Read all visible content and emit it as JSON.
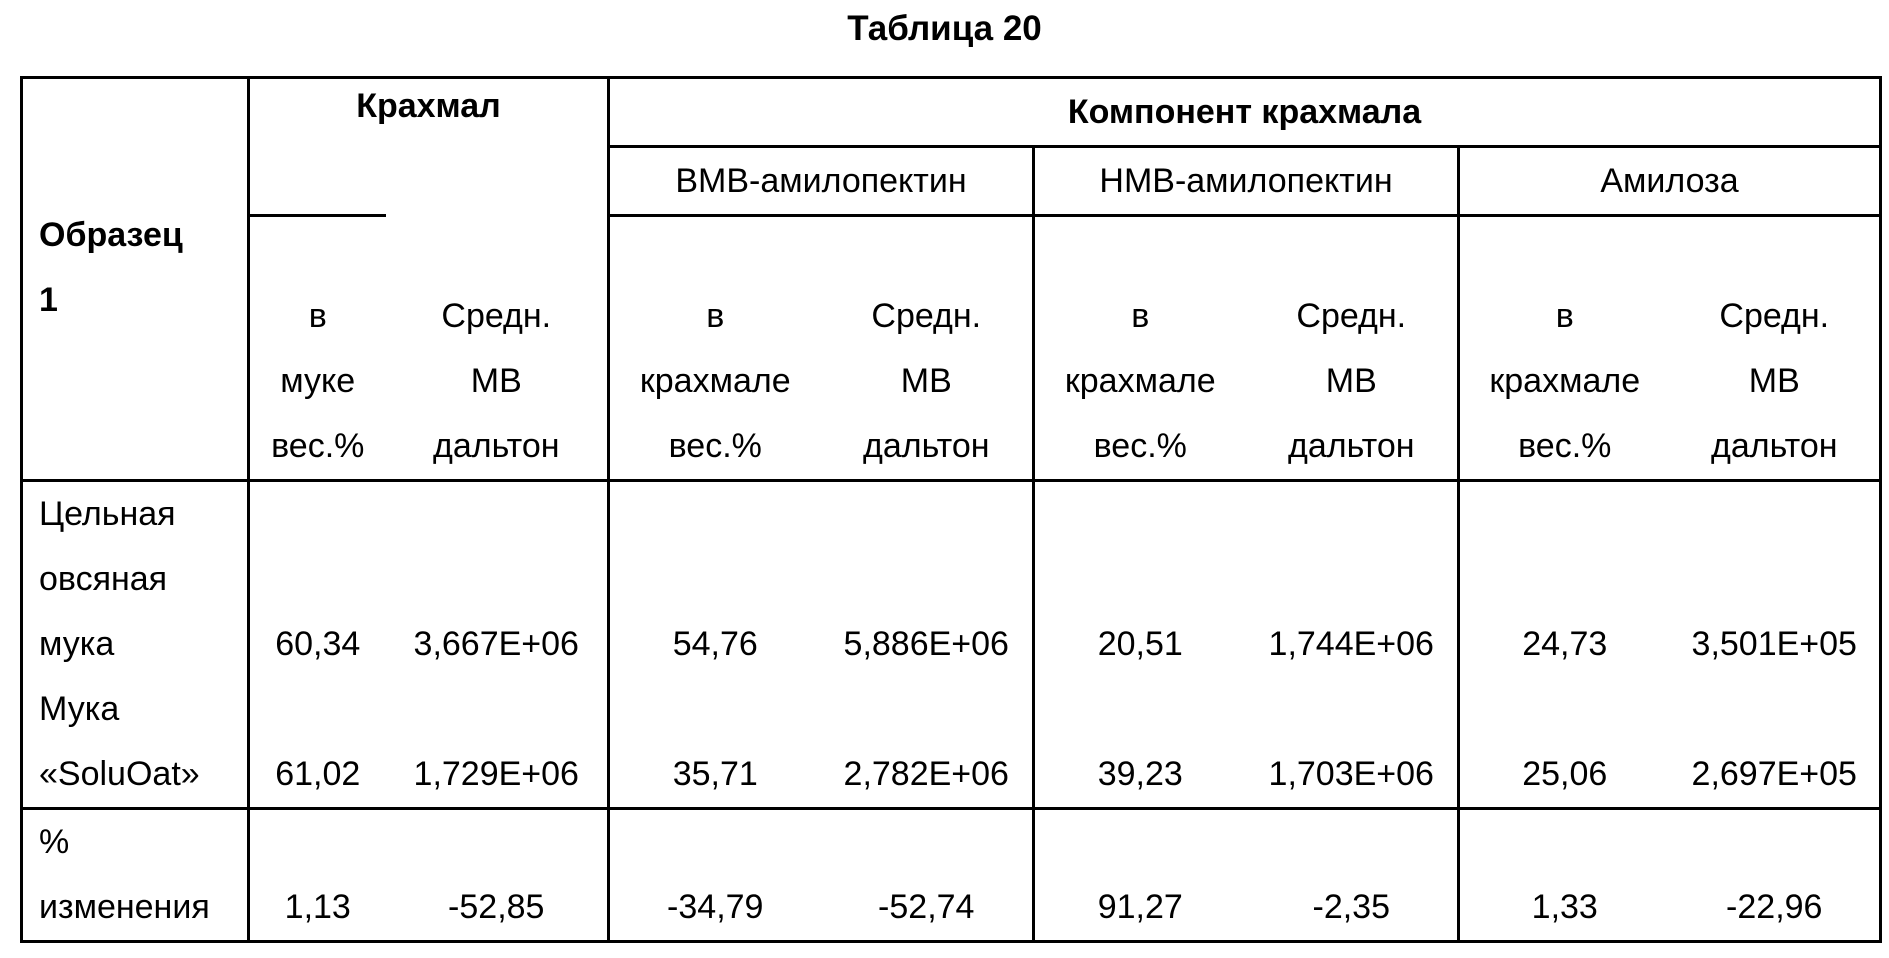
{
  "title": "Таблица 20",
  "table": {
    "header": {
      "sample": [
        "Образец",
        "1"
      ],
      "starch": "Крахмал",
      "component": "Компонент крахмала",
      "groups": [
        "ВМВ-амилопектин",
        "НМВ-амилопектин",
        "Амилоза"
      ],
      "columns": [
        [
          "в",
          "муке",
          "вес.%"
        ],
        [
          "Средн.",
          "МВ",
          "дальтон"
        ],
        [
          "в",
          "крахмале",
          "вес.%"
        ],
        [
          "Средн.",
          "МВ",
          "дальтон"
        ],
        [
          "в",
          "крахмале",
          "вес.%"
        ],
        [
          "Средн.",
          "МВ",
          "дальтон"
        ],
        [
          "в",
          "крахмале",
          "вес.%"
        ],
        [
          "Средн.",
          "МВ",
          "дальтон"
        ]
      ]
    },
    "rows": [
      {
        "name": [
          "Цельная",
          "овсяная",
          "мука"
        ],
        "values": [
          "60,34",
          "3,667E+06",
          "54,76",
          "5,886E+06",
          "20,51",
          "1,744E+06",
          "24,73",
          "3,501E+05"
        ]
      },
      {
        "name": [
          "Мука",
          "«SoluOat»"
        ],
        "values": [
          "61,02",
          "1,729E+06",
          "35,71",
          "2,782E+06",
          "39,23",
          "1,703E+06",
          "25,06",
          "2,697E+05"
        ]
      },
      {
        "name": [
          "%",
          "изменения"
        ],
        "values": [
          "1,13",
          "-52,85",
          "-34,79",
          "-52,74",
          "91,27",
          "-2,35",
          "1,33",
          "-22,96"
        ]
      }
    ]
  }
}
